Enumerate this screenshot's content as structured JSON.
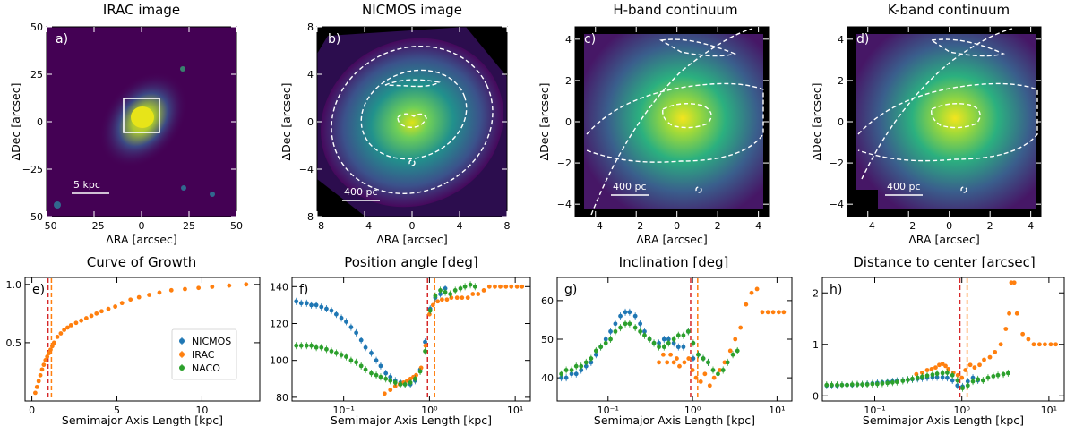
{
  "colors": {
    "nicmos": "#1f77b4",
    "irac": "#ff7f0e",
    "naco": "#2ca02c",
    "vline_red": "#d62728",
    "vline_orange": "#ff7f0e",
    "contour": "#ffffff"
  },
  "chart_data": [
    {
      "id": "a",
      "type": "heatmap",
      "title": "IRAC image",
      "panel_label": "a)",
      "xlabel": "ΔRA [arcsec]",
      "ylabel": "ΔDec [arcsec]",
      "xlim": [
        -50,
        50
      ],
      "ylim": [
        -50,
        50
      ],
      "xticks": [
        -50,
        -25,
        0,
        25,
        50
      ],
      "yticks": [
        -50,
        -25,
        0,
        25,
        50
      ],
      "xtick_labels": [
        "−50",
        "−25",
        "0",
        "25",
        "50"
      ],
      "ytick_labels": [
        "−50",
        "−25",
        "0",
        "25",
        "50"
      ],
      "scalebar": "5 kpc",
      "inset_box": [
        -8,
        8,
        -8,
        8
      ]
    },
    {
      "id": "b",
      "type": "heatmap",
      "title": "NICMOS image",
      "panel_label": "b)",
      "xlabel": "ΔRA [arcsec]",
      "ylabel": "ΔDec [arcsec]",
      "xlim": [
        -8,
        8
      ],
      "ylim": [
        -8,
        8
      ],
      "xticks": [
        -8,
        -4,
        0,
        4,
        8
      ],
      "yticks": [
        -8,
        -4,
        0,
        4,
        8
      ],
      "xtick_labels": [
        "−8",
        "−4",
        "0",
        "4",
        "8"
      ],
      "ytick_labels": [
        "−8",
        "−4",
        "0",
        "4",
        "8"
      ],
      "scalebar": "400 pc"
    },
    {
      "id": "c",
      "type": "heatmap",
      "title": "H-band continuum",
      "panel_label": "c)",
      "xlabel": "ΔRA [arcsec]",
      "ylabel": "ΔDec [arcsec]",
      "xlim": [
        -5,
        4.5
      ],
      "ylim": [
        -4.6,
        4.6
      ],
      "xticks": [
        -4,
        -2,
        0,
        2,
        4
      ],
      "yticks": [
        -4,
        -2,
        0,
        2,
        4
      ],
      "xtick_labels": [
        "−4",
        "−2",
        "0",
        "2",
        "4"
      ],
      "ytick_labels": [
        "−4",
        "−2",
        "0",
        "2",
        "4"
      ],
      "scalebar": "400 pc"
    },
    {
      "id": "d",
      "type": "heatmap",
      "title": "K-band continuum",
      "panel_label": "d)",
      "xlabel": "ΔRA [arcsec]",
      "ylabel": "ΔDec [arcsec]",
      "xlim": [
        -5,
        4.5
      ],
      "ylim": [
        -4.6,
        4.6
      ],
      "xticks": [
        -4,
        -2,
        0,
        2,
        4
      ],
      "yticks": [
        -4,
        -2,
        0,
        2,
        4
      ],
      "xtick_labels": [
        "−4",
        "−2",
        "0",
        "2",
        "4"
      ],
      "ytick_labels": [
        "−4",
        "−2",
        "0",
        "2",
        "4"
      ],
      "scalebar": "400 pc"
    },
    {
      "id": "e",
      "type": "scatter",
      "title": "Curve of Growth",
      "panel_label": "e)",
      "xlabel": "Semimajor Axis Length [kpc]",
      "ylabel": "",
      "xscale": "linear",
      "xlim": [
        -0.4,
        13.4
      ],
      "ylim": [
        0.0,
        1.06
      ],
      "xticks": [
        0,
        5,
        10
      ],
      "yticks": [
        0.5,
        1.0
      ],
      "xtick_labels": [
        "0",
        "5",
        "10"
      ],
      "ytick_labels": [
        "0.5",
        "1.0"
      ],
      "vlines": [
        0.95,
        1.15
      ],
      "legend": {
        "placement": "lower-right",
        "entries": [
          "NICMOS",
          "IRAC",
          "NACO"
        ]
      },
      "series": [
        {
          "name": "IRAC",
          "x": [
            0.2,
            0.3,
            0.4,
            0.5,
            0.6,
            0.7,
            0.8,
            0.9,
            1.0,
            1.1,
            1.2,
            1.3,
            1.5,
            1.7,
            1.9,
            2.1,
            2.3,
            2.6,
            2.9,
            3.2,
            3.5,
            3.8,
            4.1,
            4.5,
            4.9,
            5.3,
            5.8,
            6.3,
            6.9,
            7.5,
            8.2,
            9.0,
            9.8,
            10.6,
            11.6,
            12.6
          ],
          "y": [
            0.07,
            0.12,
            0.17,
            0.22,
            0.27,
            0.31,
            0.35,
            0.38,
            0.41,
            0.44,
            0.47,
            0.5,
            0.55,
            0.58,
            0.61,
            0.63,
            0.65,
            0.67,
            0.69,
            0.71,
            0.73,
            0.75,
            0.77,
            0.79,
            0.81,
            0.84,
            0.87,
            0.89,
            0.91,
            0.93,
            0.95,
            0.96,
            0.97,
            0.98,
            0.99,
            1.0
          ]
        }
      ]
    },
    {
      "id": "f",
      "type": "scatter",
      "title": "Position angle [deg]",
      "panel_label": "f)",
      "xlabel": "Semimajor Axis Length [kpc]",
      "ylabel": "",
      "xscale": "log",
      "xlim": [
        0.025,
        15
      ],
      "ylim": [
        78,
        145
      ],
      "xticks": [
        0.1,
        1,
        10
      ],
      "yticks": [
        80,
        100,
        120,
        140
      ],
      "xtick_labels": [
        "10⁻¹",
        "10⁰",
        "10¹"
      ],
      "ytick_labels": [
        "80",
        "100",
        "120",
        "140"
      ],
      "vlines": [
        0.95,
        1.15
      ],
      "series": [
        {
          "name": "NICMOS",
          "x": [
            0.028,
            0.032,
            0.037,
            0.042,
            0.048,
            0.055,
            0.063,
            0.072,
            0.082,
            0.094,
            0.107,
            0.122,
            0.14,
            0.16,
            0.18,
            0.21,
            0.24,
            0.27,
            0.31,
            0.35,
            0.4,
            0.46,
            0.52,
            0.6,
            0.68,
            0.78,
            0.89,
            1.02,
            1.17,
            1.34,
            1.53
          ],
          "y": [
            132,
            131,
            131,
            130,
            130,
            129,
            128,
            127,
            125,
            123,
            121,
            118,
            115,
            111,
            107,
            104,
            100,
            97,
            93,
            91,
            89,
            88,
            87,
            87,
            89,
            95,
            110,
            128,
            134,
            136,
            139
          ]
        },
        {
          "name": "IRAC",
          "x": [
            0.3,
            0.35,
            0.4,
            0.45,
            0.5,
            0.55,
            0.6,
            0.65,
            0.7,
            0.8,
            0.9,
            1.0,
            1.1,
            1.25,
            1.4,
            1.6,
            1.8,
            2.1,
            2.4,
            2.8,
            3.2,
            3.7,
            4.3,
            5.0,
            5.8,
            6.7,
            7.8,
            9.0,
            10.5,
            12.0
          ],
          "y": [
            82,
            84,
            86,
            87,
            88,
            89,
            90,
            91,
            92,
            96,
            108,
            125,
            130,
            132,
            133,
            133,
            134,
            134,
            134,
            134,
            136,
            136,
            138,
            140,
            140,
            140,
            140,
            140,
            140,
            140
          ]
        },
        {
          "name": "NACO",
          "x": [
            0.028,
            0.032,
            0.037,
            0.042,
            0.048,
            0.055,
            0.063,
            0.072,
            0.082,
            0.094,
            0.107,
            0.122,
            0.14,
            0.16,
            0.18,
            0.21,
            0.24,
            0.27,
            0.31,
            0.35,
            0.4,
            0.46,
            0.52,
            0.6,
            0.68,
            0.78,
            0.89,
            1.02,
            1.17,
            1.34,
            1.53,
            1.75,
            2.0,
            2.3,
            2.6,
            3.0,
            3.4
          ],
          "y": [
            108,
            108,
            108,
            108,
            107,
            107,
            106,
            105,
            104,
            103,
            102,
            100,
            99,
            97,
            95,
            93,
            92,
            91,
            90,
            89,
            88,
            87,
            87,
            88,
            90,
            94,
            105,
            127,
            135,
            138,
            137,
            136,
            138,
            139,
            140,
            141,
            140
          ]
        }
      ]
    },
    {
      "id": "g",
      "type": "scatter",
      "title": "Inclination [deg]",
      "panel_label": "g)",
      "xlabel": "Semimajor Axis Length [kpc]",
      "ylabel": "",
      "xscale": "log",
      "xlim": [
        0.025,
        15
      ],
      "ylim": [
        34,
        66
      ],
      "xticks": [
        0.1,
        1,
        10
      ],
      "yticks": [
        40,
        50,
        60
      ],
      "xtick_labels": [
        "10⁻¹",
        "10⁰",
        "10¹"
      ],
      "ytick_labels": [
        "40",
        "50",
        "60"
      ],
      "vlines": [
        0.95,
        1.15
      ],
      "series": [
        {
          "name": "NICMOS",
          "x": [
            0.028,
            0.032,
            0.037,
            0.042,
            0.048,
            0.055,
            0.063,
            0.072,
            0.082,
            0.094,
            0.107,
            0.122,
            0.14,
            0.16,
            0.18,
            0.21,
            0.24,
            0.27,
            0.31,
            0.35,
            0.4,
            0.46,
            0.52,
            0.6,
            0.68,
            0.78,
            0.89,
            1.02,
            1.17,
            1.34,
            1.53
          ],
          "y": [
            40,
            40,
            41,
            41,
            42,
            43,
            44,
            46,
            48,
            50,
            52,
            54,
            56,
            57,
            57,
            56,
            54,
            52,
            50,
            49,
            49,
            50,
            50,
            49,
            48,
            48,
            52,
            45,
            46,
            45,
            44
          ]
        },
        {
          "name": "IRAC",
          "x": [
            0.4,
            0.45,
            0.5,
            0.55,
            0.6,
            0.65,
            0.7,
            0.8,
            0.9,
            1.0,
            1.1,
            1.25,
            1.4,
            1.6,
            1.8,
            2.1,
            2.4,
            2.8,
            3.2,
            3.7,
            4.3,
            5.0,
            5.8,
            6.7,
            7.8,
            9.0,
            10.5,
            12.0
          ],
          "y": [
            44,
            46,
            44,
            46,
            44,
            45,
            43,
            44,
            45,
            42,
            40,
            39,
            41,
            38,
            40,
            42,
            44,
            47,
            50,
            53,
            59,
            62,
            63,
            57,
            57,
            57,
            57,
            57
          ]
        },
        {
          "name": "NACO",
          "x": [
            0.028,
            0.032,
            0.037,
            0.042,
            0.048,
            0.055,
            0.063,
            0.072,
            0.082,
            0.094,
            0.107,
            0.122,
            0.14,
            0.16,
            0.18,
            0.21,
            0.24,
            0.27,
            0.31,
            0.35,
            0.4,
            0.46,
            0.52,
            0.6,
            0.68,
            0.78,
            0.89,
            1.02,
            1.17,
            1.34,
            1.53,
            1.75,
            2.0,
            2.3,
            2.6,
            3.0,
            3.4
          ],
          "y": [
            41,
            42,
            42,
            43,
            43,
            44,
            45,
            47,
            48,
            49,
            50,
            52,
            53,
            54,
            54,
            53,
            52,
            51,
            50,
            49,
            48,
            48,
            49,
            50,
            51,
            51,
            52,
            49,
            46,
            45,
            44,
            42,
            41,
            42,
            44,
            46,
            47
          ]
        }
      ]
    },
    {
      "id": "h",
      "type": "scatter",
      "title": "Distance to center [arcsec]",
      "panel_label": "h)",
      "xlabel": "Semimajor Axis Length [kpc]",
      "ylabel": "",
      "xscale": "log",
      "xlim": [
        0.025,
        15
      ],
      "ylim": [
        -0.1,
        2.3
      ],
      "xticks": [
        0.1,
        1,
        10
      ],
      "yticks": [
        0,
        1,
        2
      ],
      "xtick_labels": [
        "10⁻¹",
        "10⁰",
        "10¹"
      ],
      "ytick_labels": [
        "0",
        "1",
        "2"
      ],
      "vlines": [
        0.95,
        1.15
      ],
      "series": [
        {
          "name": "NICMOS",
          "x": [
            0.028,
            0.032,
            0.037,
            0.042,
            0.048,
            0.055,
            0.063,
            0.072,
            0.082,
            0.094,
            0.107,
            0.122,
            0.14,
            0.16,
            0.18,
            0.21,
            0.24,
            0.27,
            0.31,
            0.35,
            0.4,
            0.46,
            0.52,
            0.6,
            0.68,
            0.78,
            0.89,
            1.02,
            1.17,
            1.34,
            1.53
          ],
          "y": [
            0.2,
            0.2,
            0.2,
            0.21,
            0.21,
            0.21,
            0.22,
            0.22,
            0.23,
            0.24,
            0.25,
            0.26,
            0.27,
            0.28,
            0.29,
            0.3,
            0.31,
            0.32,
            0.33,
            0.34,
            0.35,
            0.36,
            0.36,
            0.36,
            0.35,
            0.3,
            0.2,
            0.18,
            0.28,
            0.35,
            0.3
          ]
        },
        {
          "name": "IRAC",
          "x": [
            0.3,
            0.35,
            0.4,
            0.45,
            0.5,
            0.55,
            0.6,
            0.65,
            0.7,
            0.8,
            0.9,
            1.0,
            1.1,
            1.25,
            1.4,
            1.6,
            1.8,
            2.1,
            2.4,
            2.8,
            3.2,
            3.5,
            3.7,
            4.0,
            4.3,
            5.0,
            5.8,
            6.7,
            7.8,
            9.0,
            10.5,
            12.0
          ],
          "y": [
            0.42,
            0.45,
            0.5,
            0.52,
            0.55,
            0.6,
            0.62,
            0.58,
            0.52,
            0.45,
            0.4,
            0.35,
            0.5,
            0.6,
            0.55,
            0.6,
            0.7,
            0.75,
            0.85,
            1.0,
            1.3,
            1.6,
            2.2,
            2.2,
            1.6,
            1.2,
            1.1,
            1.0,
            1.0,
            1.0,
            1.0,
            1.0
          ]
        },
        {
          "name": "NACO",
          "x": [
            0.028,
            0.032,
            0.037,
            0.042,
            0.048,
            0.055,
            0.063,
            0.072,
            0.082,
            0.094,
            0.107,
            0.122,
            0.14,
            0.16,
            0.18,
            0.21,
            0.24,
            0.27,
            0.31,
            0.35,
            0.4,
            0.46,
            0.52,
            0.6,
            0.68,
            0.78,
            0.89,
            1.02,
            1.17,
            1.34,
            1.53,
            1.75,
            2.0,
            2.3,
            2.6,
            3.0,
            3.4
          ],
          "y": [
            0.21,
            0.21,
            0.21,
            0.21,
            0.21,
            0.22,
            0.22,
            0.22,
            0.22,
            0.23,
            0.23,
            0.24,
            0.25,
            0.26,
            0.27,
            0.29,
            0.31,
            0.33,
            0.35,
            0.37,
            0.39,
            0.41,
            0.43,
            0.44,
            0.45,
            0.4,
            0.3,
            0.15,
            0.2,
            0.28,
            0.32,
            0.3,
            0.35,
            0.38,
            0.4,
            0.42,
            0.44
          ]
        }
      ]
    }
  ]
}
